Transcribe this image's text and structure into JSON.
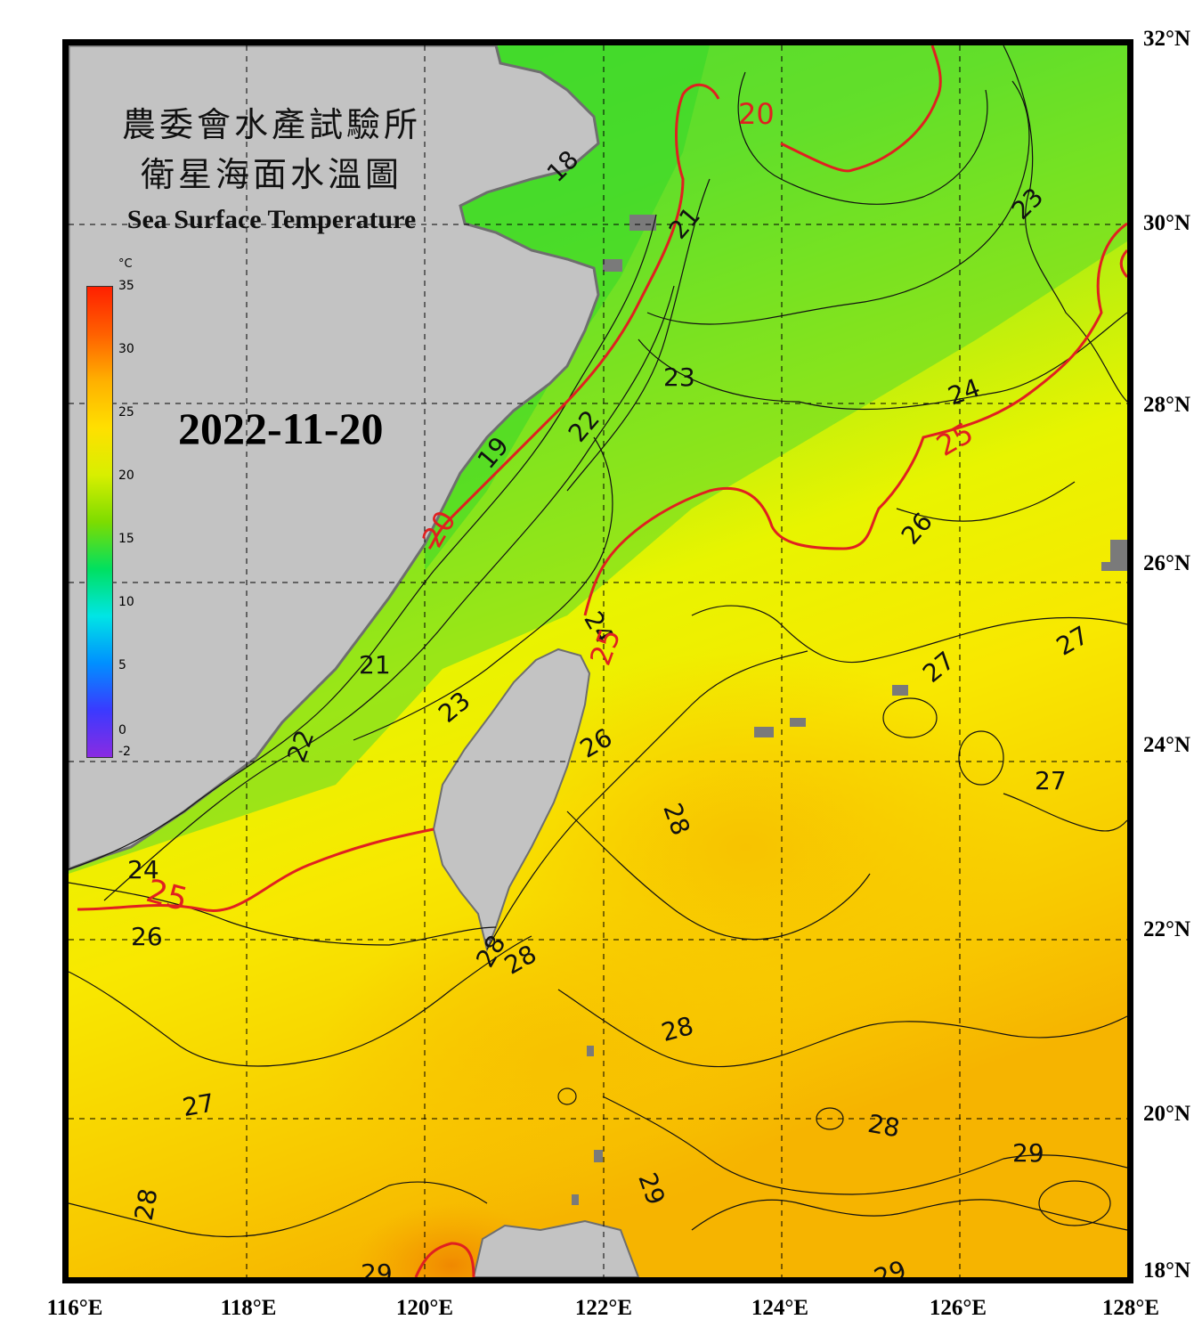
{
  "title": {
    "zh_line1": "農委會水產試驗所",
    "zh_line2": "衛星海面水溫圖",
    "en": "Sea Surface Temperature"
  },
  "date": "2022-11-20",
  "colorbar": {
    "unit": "°C",
    "ticks": [
      "35",
      "30",
      "25",
      "20",
      "15",
      "10",
      "5",
      "0",
      "-2"
    ],
    "stops": [
      "#8a2be2",
      "#3a3aff",
      "#0090ff",
      "#00e5e5",
      "#00e060",
      "#7ddc00",
      "#d8ef00",
      "#ffe000",
      "#ffb000",
      "#ff6000",
      "#ff2000"
    ]
  },
  "lat_labels": [
    "32°N",
    "30°N",
    "28°N",
    "26°N",
    "24°N",
    "22°N",
    "20°N",
    "18°N"
  ],
  "lon_labels": [
    "116°E",
    "118°E",
    "120°E",
    "122°E",
    "124°E",
    "126°E",
    "128°E"
  ],
  "contour_labels": [
    "18",
    "20",
    "21",
    "23",
    "23",
    "24",
    "25",
    "22",
    "19",
    "26",
    "20",
    "24",
    "25",
    "27",
    "21",
    "23",
    "27",
    "22",
    "26",
    "27",
    "28",
    "24",
    "25",
    "26",
    "28",
    "28",
    "28",
    "27",
    "28",
    "29",
    "29",
    "28",
    "29",
    "29"
  ],
  "colors": {
    "land": "#c3c3c3",
    "coast_islands": "#7a7a7a",
    "contour_major": "#e02020",
    "contour_minor": "#111111",
    "grid": "#000000"
  }
}
